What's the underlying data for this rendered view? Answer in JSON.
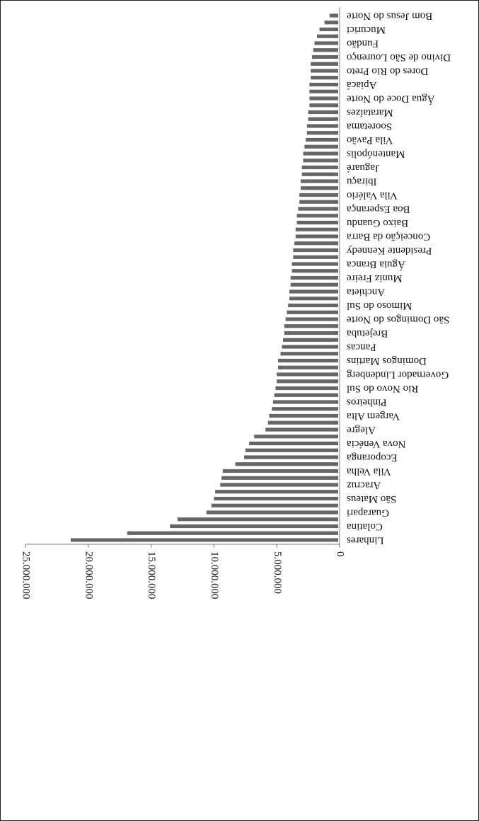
{
  "chart_data": {
    "type": "bar",
    "orientation": "horizontal",
    "color": "#666666",
    "categories": [
      "Linhares",
      null,
      "Colatina",
      null,
      "Guarapari",
      null,
      "São Mateus",
      null,
      "Aracruz",
      null,
      "Vila Velha",
      null,
      "Ecoporanga",
      null,
      "Nova Venécia",
      null,
      "Alegre",
      null,
      "Vargem Alta",
      null,
      "Pinheiros",
      null,
      "Rio Novo do Sul",
      null,
      "Governador Lindenberg",
      null,
      "Domingos Martins",
      null,
      "Pancas",
      null,
      "Brejetuba",
      null,
      "São Domingos do Norte",
      null,
      "Mimoso do Sul",
      null,
      "Anchieta",
      null,
      "Muniz Freire",
      null,
      "Águia Branca",
      null,
      "Presidente Kennedy",
      null,
      "Conceição da Barra",
      null,
      "Baixo Guandu",
      null,
      "Boa Esperança",
      null,
      "Vila Valério",
      null,
      "Ibiraçu",
      null,
      "Jaguaré",
      null,
      "Mantenópolis",
      null,
      "Vila Pavão",
      null,
      "Sooretama",
      null,
      "Marataízes",
      null,
      "Água Doce do Norte",
      null,
      "Apiacá",
      null,
      "Dores do Rio Preto",
      null,
      "Divino de São Lourenço",
      null,
      "Fundão",
      null,
      "Mucurici",
      null,
      "Bom Jesus do Norte"
    ],
    "values": [
      21400000,
      16900000,
      13500000,
      12900000,
      10600000,
      10200000,
      10000000,
      9900000,
      9500000,
      9400000,
      9300000,
      8300000,
      7600000,
      7500000,
      7200000,
      6800000,
      5900000,
      5700000,
      5600000,
      5400000,
      5300000,
      5200000,
      5100000,
      5000000,
      5000000,
      4900000,
      4900000,
      4700000,
      4600000,
      4500000,
      4400000,
      4400000,
      4300000,
      4200000,
      4100000,
      4000000,
      4000000,
      3900000,
      3900000,
      3800000,
      3800000,
      3700000,
      3700000,
      3600000,
      3500000,
      3500000,
      3400000,
      3400000,
      3300000,
      3200000,
      3200000,
      3100000,
      3100000,
      3000000,
      3000000,
      2900000,
      2900000,
      2800000,
      2700000,
      2600000,
      2600000,
      2500000,
      2500000,
      2400000,
      2400000,
      2400000,
      2400000,
      2300000,
      2300000,
      2300000,
      2200000,
      2100000,
      2000000,
      1800000,
      1600000,
      1200000,
      800000
    ],
    "xlim": [
      0,
      25000000
    ],
    "xticks": [
      0,
      {
        "value": 5000000,
        "label": "5.000.000"
      },
      {
        "value": 10000000,
        "label": "10.000.000"
      },
      {
        "value": 15000000,
        "label": "15.000.000"
      },
      {
        "value": 20000000,
        "label": "20.000.000"
      },
      {
        "value": 25000000,
        "label": "25.000.000"
      }
    ]
  }
}
